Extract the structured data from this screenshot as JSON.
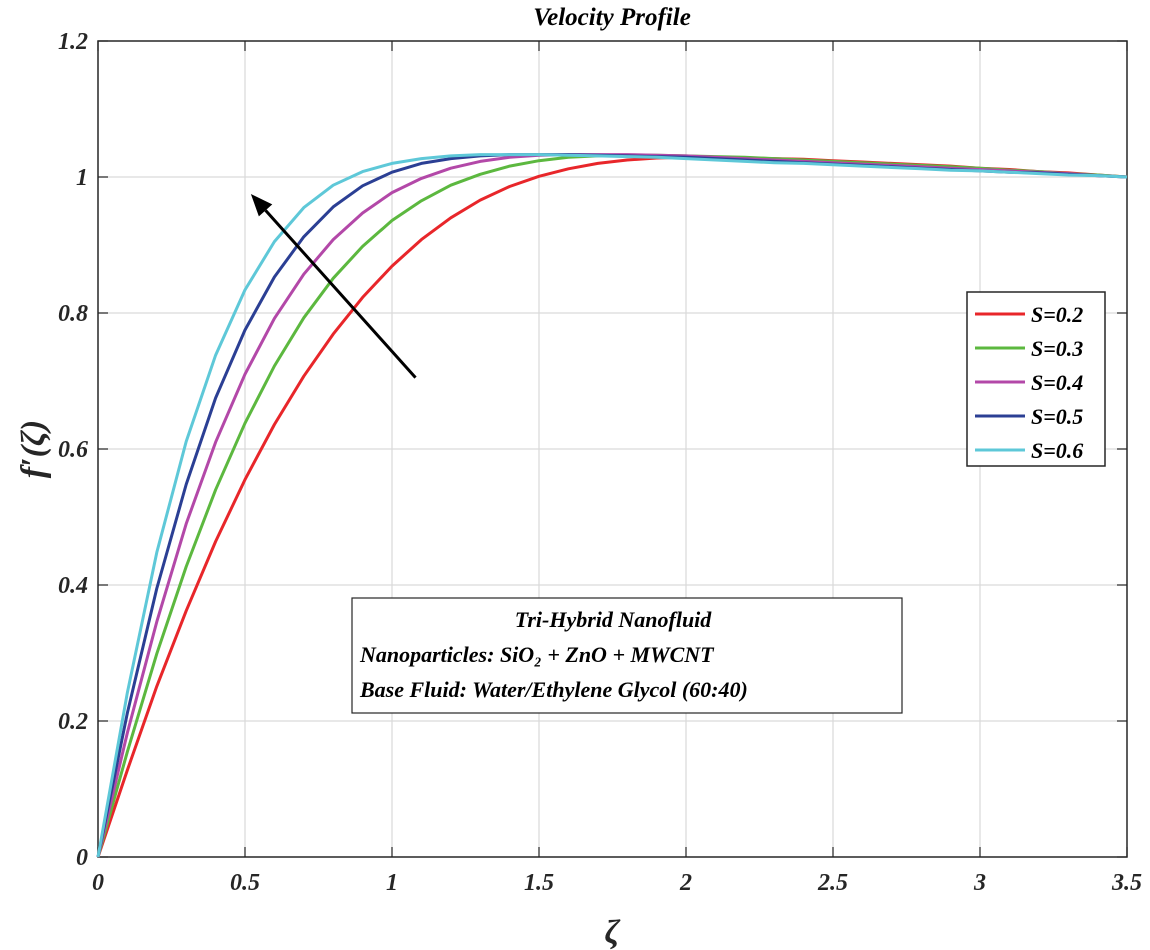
{
  "chart_data": {
    "type": "line",
    "title": "Velocity Profile",
    "xlabel": "ζ",
    "ylabel": "f′(ζ)",
    "xlim": [
      0,
      3.5
    ],
    "ylim": [
      0,
      1.2
    ],
    "xticks": [
      0,
      0.5,
      1,
      1.5,
      2,
      2.5,
      3,
      3.5
    ],
    "xtick_labels": [
      "0",
      "0.5",
      "1",
      "1.5",
      "2",
      "2.5",
      "3",
      "3.5"
    ],
    "yticks": [
      0,
      0.2,
      0.4,
      0.6,
      0.8,
      1,
      1.2
    ],
    "ytick_labels": [
      "0",
      "0.2",
      "0.4",
      "0.6",
      "0.8",
      "1",
      "1.2"
    ],
    "grid": true,
    "legend_position": "right",
    "x": [
      0,
      0.1,
      0.2,
      0.3,
      0.4,
      0.5,
      0.6,
      0.7,
      0.8,
      0.9,
      1.0,
      1.1,
      1.2,
      1.3,
      1.4,
      1.5,
      1.6,
      1.7,
      1.8,
      1.9,
      2.0,
      2.1,
      2.2,
      2.3,
      2.4,
      2.5,
      2.6,
      2.7,
      2.8,
      2.9,
      3.0,
      3.1,
      3.2,
      3.3,
      3.4,
      3.5
    ],
    "series": [
      {
        "name": "S=0.2",
        "color": "#e8262a",
        "values": [
          0,
          0.128,
          0.251,
          0.362,
          0.464,
          0.555,
          0.636,
          0.707,
          0.769,
          0.823,
          0.869,
          0.908,
          0.94,
          0.966,
          0.986,
          1.001,
          1.012,
          1.02,
          1.025,
          1.028,
          1.029,
          1.029,
          1.028,
          1.027,
          1.026,
          1.024,
          1.022,
          1.02,
          1.018,
          1.016,
          1.013,
          1.011,
          1.008,
          1.006,
          1.003,
          1.0
        ]
      },
      {
        "name": "S=0.3",
        "color": "#5cb83f",
        "values": [
          0,
          0.155,
          0.299,
          0.427,
          0.54,
          0.638,
          0.722,
          0.793,
          0.851,
          0.898,
          0.936,
          0.965,
          0.988,
          1.004,
          1.016,
          1.024,
          1.029,
          1.031,
          1.032,
          1.032,
          1.031,
          1.03,
          1.029,
          1.027,
          1.025,
          1.023,
          1.021,
          1.019,
          1.017,
          1.015,
          1.013,
          1.01,
          1.008,
          1.005,
          1.003,
          1.0
        ]
      },
      {
        "name": "S=0.4",
        "color": "#b348a8",
        "values": [
          0,
          0.183,
          0.346,
          0.49,
          0.61,
          0.71,
          0.792,
          0.857,
          0.908,
          0.947,
          0.977,
          0.998,
          1.013,
          1.023,
          1.029,
          1.032,
          1.033,
          1.033,
          1.033,
          1.032,
          1.031,
          1.029,
          1.027,
          1.025,
          1.023,
          1.021,
          1.019,
          1.017,
          1.015,
          1.013,
          1.011,
          1.009,
          1.007,
          1.005,
          1.002,
          1.0
        ]
      },
      {
        "name": "S=0.5",
        "color": "#2b3f94",
        "values": [
          0,
          0.212,
          0.395,
          0.548,
          0.675,
          0.775,
          0.853,
          0.912,
          0.956,
          0.987,
          1.007,
          1.02,
          1.027,
          1.031,
          1.033,
          1.033,
          1.033,
          1.032,
          1.031,
          1.03,
          1.029,
          1.027,
          1.025,
          1.023,
          1.021,
          1.019,
          1.017,
          1.015,
          1.013,
          1.011,
          1.009,
          1.007,
          1.006,
          1.004,
          1.002,
          1.0
        ]
      },
      {
        "name": "S=0.6",
        "color": "#5ec8d8",
        "values": [
          0,
          0.242,
          0.448,
          0.611,
          0.738,
          0.834,
          0.905,
          0.955,
          0.988,
          1.008,
          1.02,
          1.027,
          1.031,
          1.033,
          1.033,
          1.033,
          1.032,
          1.031,
          1.03,
          1.029,
          1.027,
          1.025,
          1.023,
          1.021,
          1.02,
          1.018,
          1.016,
          1.014,
          1.012,
          1.01,
          1.009,
          1.007,
          1.005,
          1.003,
          1.002,
          1.0
        ]
      }
    ],
    "annotation_lines": [
      "Tri-Hybrid Nanofluid",
      "Nanoparticles:  SiO₂ + ZnO + MWCNT",
      "Base Fluid: Water/Ethylene Glycol (60:40)"
    ],
    "arrow": {
      "from": [
        1.08,
        0.705
      ],
      "to": [
        0.52,
        0.975
      ],
      "meaning": "increasing S"
    }
  },
  "colors": {
    "axis": "#262626",
    "grid": "#d9d9d9",
    "arrow": "#000000"
  }
}
